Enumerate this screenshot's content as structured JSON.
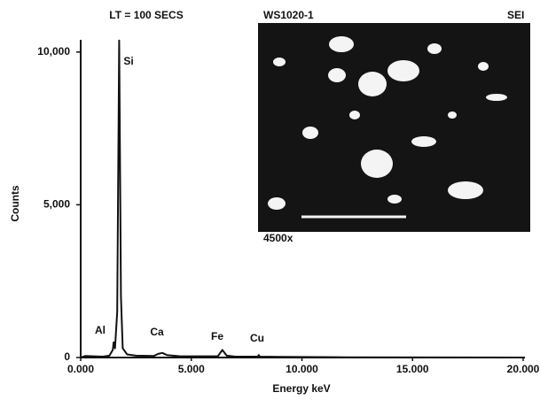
{
  "chart_data": {
    "type": "line",
    "title": "LT = 100 SECS",
    "x_label": "Energy   keV",
    "y_label": "Counts",
    "x": [
      0,
      0.2,
      1.0,
      1.3,
      1.45,
      1.49,
      1.55,
      1.65,
      1.74,
      1.82,
      1.9,
      2.1,
      2.5,
      3.3,
      3.5,
      3.69,
      3.9,
      4.5,
      6.2,
      6.4,
      6.6,
      7.0,
      8.0,
      8.05,
      8.1,
      9,
      12,
      20
    ],
    "values": [
      0,
      50,
      30,
      60,
      250,
      500,
      300,
      1500,
      10380,
      2000,
      300,
      100,
      60,
      50,
      120,
      150,
      80,
      40,
      40,
      250,
      60,
      30,
      30,
      80,
      30,
      20,
      10,
      0
    ],
    "color": "#111111",
    "xlim": [
      0,
      20
    ],
    "xticks": [
      {
        "value": 0,
        "label": "0.000"
      },
      {
        "value": 5,
        "label": "5.000"
      },
      {
        "value": 10,
        "label": "10.000"
      },
      {
        "value": 15,
        "label": "15.000"
      },
      {
        "value": 20,
        "label": "20.000"
      }
    ],
    "ylim": [
      0,
      10400
    ],
    "yticks": [
      0,
      {
        "value": 5000,
        "label": "5,000"
      },
      {
        "value": 10000,
        "label": "10,000"
      }
    ],
    "grid": false,
    "annotations": [
      "Al",
      "Si",
      "Ca",
      "Fe",
      "Cu"
    ],
    "inset": {
      "sample": "WS1020-1",
      "mode": "SEI",
      "magnification": "4500x"
    }
  }
}
